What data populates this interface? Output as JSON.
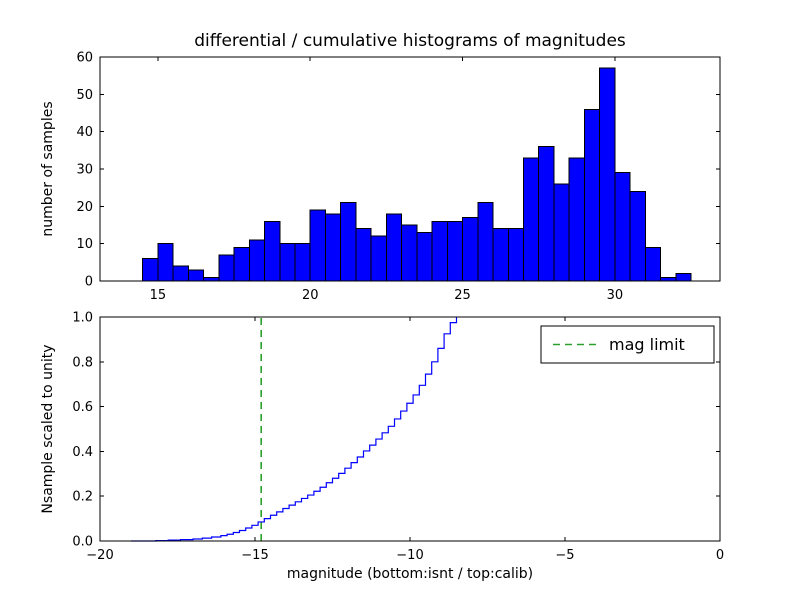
{
  "figure": {
    "background": "#ffffff",
    "title": "differential / cumulative histograms of magnitudes"
  },
  "chart_data": [
    {
      "type": "bar",
      "subplot": "top",
      "title": "differential / cumulative histograms of magnitudes",
      "ylabel": "number of samples",
      "bar_color": "#0000ff",
      "bar_edge_color": "#000000",
      "bin_start": 14.5,
      "bin_width": 0.5,
      "values": [
        6,
        10,
        4,
        3,
        1,
        7,
        9,
        11,
        16,
        10,
        10,
        19,
        18,
        21,
        14,
        12,
        18,
        15,
        13,
        16,
        16,
        17,
        21,
        14,
        14,
        33,
        36,
        26,
        33,
        46,
        57,
        29,
        24,
        9,
        1,
        2
      ],
      "xlim": [
        13.1,
        33.45
      ],
      "ylim": [
        0,
        60
      ],
      "xticks": [
        15,
        20,
        25,
        30
      ],
      "xtick_labels": [
        "15",
        "20",
        "25",
        "30"
      ],
      "yticks": [
        0,
        10,
        20,
        30,
        40,
        50,
        60
      ],
      "ytick_labels": [
        "0",
        "10",
        "20",
        "30",
        "40",
        "50",
        "60"
      ],
      "grid": false
    },
    {
      "type": "line",
      "subplot": "bottom",
      "line_style": "step",
      "line_color": "#0000ff",
      "ylabel": "Nsample scaled to unity",
      "xlabel": "magnitude (bottom:isnt / top:calib)",
      "xlim": [
        -20,
        0
      ],
      "ylim": [
        0.0,
        1.0
      ],
      "xticks": [
        -20,
        -15,
        -10,
        -5,
        0
      ],
      "xtick_labels": [
        "−20",
        "−15",
        "−10",
        "−5",
        "0"
      ],
      "yticks": [
        0.0,
        0.2,
        0.4,
        0.6,
        0.8,
        1.0
      ],
      "ytick_labels": [
        "0.0",
        "0.2",
        "0.4",
        "0.6",
        "0.8",
        "1.0"
      ],
      "steps": [
        [
          -19.0,
          0.0
        ],
        [
          -18.2,
          0.002
        ],
        [
          -17.8,
          0.004
        ],
        [
          -17.4,
          0.006
        ],
        [
          -17.0,
          0.009
        ],
        [
          -16.7,
          0.013
        ],
        [
          -16.4,
          0.018
        ],
        [
          -16.1,
          0.024
        ],
        [
          -15.9,
          0.03
        ],
        [
          -15.7,
          0.038
        ],
        [
          -15.5,
          0.047
        ],
        [
          -15.3,
          0.058
        ],
        [
          -15.1,
          0.07
        ],
        [
          -14.9,
          0.085
        ],
        [
          -14.7,
          0.1
        ],
        [
          -14.5,
          0.115
        ],
        [
          -14.3,
          0.13
        ],
        [
          -14.1,
          0.145
        ],
        [
          -13.9,
          0.16
        ],
        [
          -13.7,
          0.175
        ],
        [
          -13.5,
          0.19
        ],
        [
          -13.3,
          0.205
        ],
        [
          -13.1,
          0.222
        ],
        [
          -12.9,
          0.24
        ],
        [
          -12.7,
          0.26
        ],
        [
          -12.5,
          0.28
        ],
        [
          -12.3,
          0.302
        ],
        [
          -12.1,
          0.325
        ],
        [
          -11.9,
          0.35
        ],
        [
          -11.7,
          0.375
        ],
        [
          -11.5,
          0.402
        ],
        [
          -11.3,
          0.428
        ],
        [
          -11.1,
          0.455
        ],
        [
          -10.9,
          0.483
        ],
        [
          -10.7,
          0.512
        ],
        [
          -10.5,
          0.545
        ],
        [
          -10.3,
          0.58
        ],
        [
          -10.1,
          0.615
        ],
        [
          -9.9,
          0.652
        ],
        [
          -9.7,
          0.695
        ],
        [
          -9.5,
          0.745
        ],
        [
          -9.3,
          0.8
        ],
        [
          -9.1,
          0.86
        ],
        [
          -8.9,
          0.925
        ],
        [
          -8.7,
          0.975
        ],
        [
          -8.5,
          1.0
        ]
      ],
      "mag_limit_line": {
        "x": -14.8,
        "color": "#2ca02c",
        "dashed": true
      },
      "legend_label": "mag limit",
      "legend_position": "upper right",
      "grid": false
    }
  ]
}
